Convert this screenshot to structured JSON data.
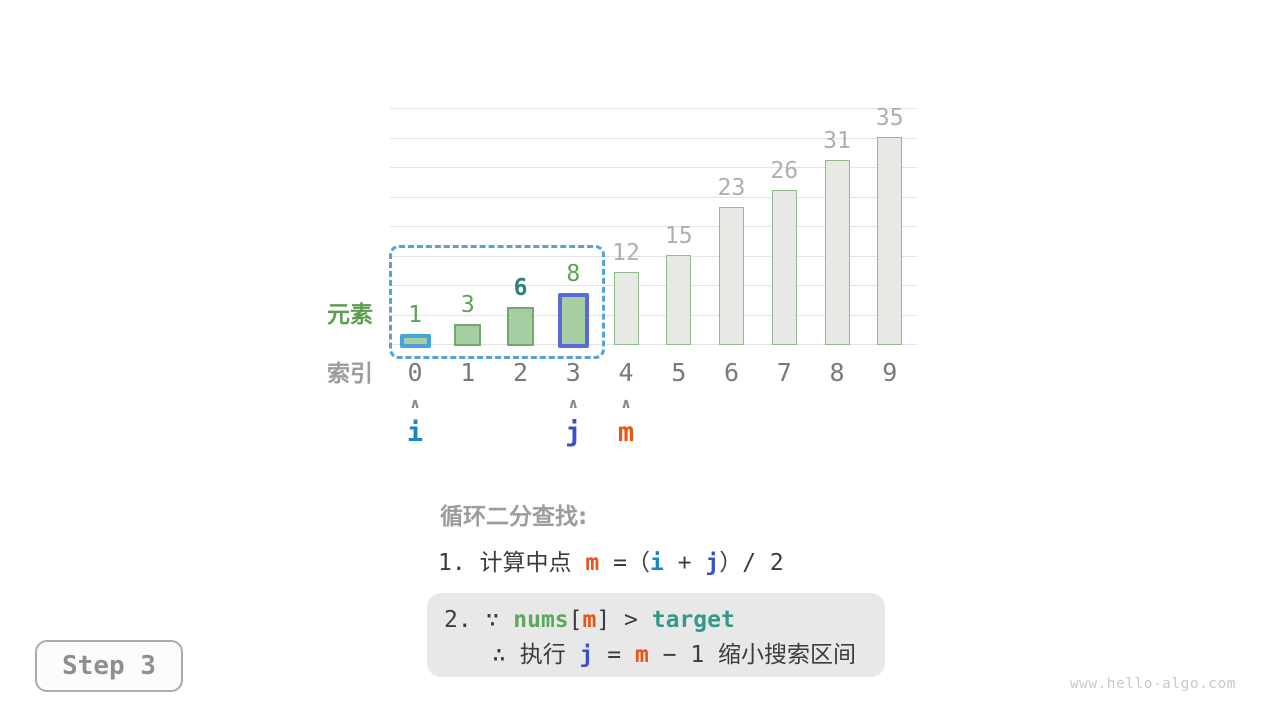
{
  "chart_data": {
    "type": "bar",
    "title": "",
    "categories": [
      "0",
      "1",
      "2",
      "3",
      "4",
      "5",
      "6",
      "7",
      "8",
      "9"
    ],
    "values": [
      1,
      3,
      6,
      8,
      12,
      15,
      23,
      26,
      31,
      35
    ],
    "xlabel": "索引",
    "ylabel": "元素",
    "ylim": [
      0,
      40
    ],
    "grid": true,
    "gridline_step": 5,
    "legend_position": "none",
    "bars": [
      {
        "index": "0",
        "value": 1,
        "fill": "green",
        "outline": "i",
        "label_style": "green"
      },
      {
        "index": "1",
        "value": 3,
        "fill": "green",
        "outline": null,
        "label_style": "green"
      },
      {
        "index": "2",
        "value": 6,
        "fill": "green",
        "outline": null,
        "label_style": "target"
      },
      {
        "index": "3",
        "value": 8,
        "fill": "green",
        "outline": "j",
        "label_style": "green"
      },
      {
        "index": "4",
        "value": 12,
        "fill": "gray",
        "outline": null,
        "label_style": "gray"
      },
      {
        "index": "5",
        "value": 15,
        "fill": "gray",
        "outline": null,
        "label_style": "gray"
      },
      {
        "index": "6",
        "value": 23,
        "fill": "gray",
        "outline": null,
        "label_style": "gray"
      },
      {
        "index": "7",
        "value": 26,
        "fill": "gray",
        "outline": null,
        "label_style": "gray"
      },
      {
        "index": "8",
        "value": 31,
        "fill": "gray",
        "outline": null,
        "label_style": "gray"
      },
      {
        "index": "9",
        "value": 35,
        "fill": "gray",
        "outline": null,
        "label_style": "gray"
      }
    ]
  },
  "pointers": [
    {
      "label": "i",
      "index": 0,
      "color_key": "i"
    },
    {
      "label": "j",
      "index": 3,
      "color_key": "j"
    },
    {
      "label": "m",
      "index": 4,
      "color_key": "m"
    }
  ],
  "search_range": {
    "from_index": 0,
    "to_index": 3
  },
  "caption": "循环二分查找:",
  "step1_tokens": [
    {
      "t": "1. ",
      "c": "text"
    },
    {
      "t": "计算中点 ",
      "c": "text"
    },
    {
      "t": "m",
      "c": "m"
    },
    {
      "t": " =（",
      "c": "text"
    },
    {
      "t": "i",
      "c": "i"
    },
    {
      "t": " + ",
      "c": "text"
    },
    {
      "t": "j",
      "c": "j"
    },
    {
      "t": "）/ 2",
      "c": "text"
    }
  ],
  "step2_line1_tokens": [
    {
      "t": "2. ∵ ",
      "c": "text"
    },
    {
      "t": "nums",
      "c": "nums"
    },
    {
      "t": "[",
      "c": "text"
    },
    {
      "t": "m",
      "c": "m"
    },
    {
      "t": "] > ",
      "c": "text"
    },
    {
      "t": "target",
      "c": "target"
    }
  ],
  "step2_line2_tokens": [
    {
      "t": "∴ 执行 ",
      "c": "text"
    },
    {
      "t": "j",
      "c": "j"
    },
    {
      "t": " = ",
      "c": "text"
    },
    {
      "t": "m",
      "c": "m"
    },
    {
      "t": " − 1 缩小搜索区间",
      "c": "text"
    }
  ],
  "step_badge": "Step 3",
  "watermark": "www.hello-algo.com",
  "colors": {
    "i": "#1A85C6",
    "j": "#3A50C8",
    "m": "#E95513",
    "nums": "#5FA75F",
    "target": "#35998A",
    "text": "#3C3C3C",
    "caption_gray": "#9C9C9C",
    "value_green": "#5FA055",
    "value_target": "#2B8374",
    "value_gray": "#AFAFAF",
    "axis_green": "#5D9E53",
    "axis_gray": "#9C9C9C",
    "index_gray": "#7A7A7A",
    "bar_green_fill": "#A7CDA3",
    "bar_green_border": "#74A871",
    "bar_gray_fill": "#E7E9E5",
    "bar_gray_border": "#90BA8C",
    "outline_i": "#44A4DD",
    "outline_j": "#5B6BD5",
    "range_dash": "#54A3DB",
    "gridline": "#E3E3E3",
    "note_bg": "#E8E8E8",
    "caret_gray": "#8A8A8A",
    "chip_text": "#8F8F8F",
    "watermark_gray": "#C9C9C9"
  }
}
